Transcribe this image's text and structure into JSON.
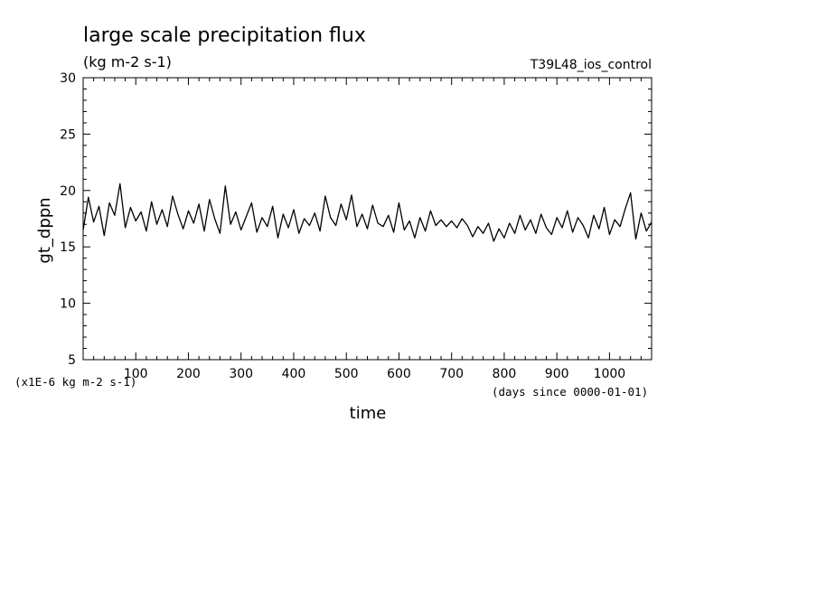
{
  "chart_data": {
    "type": "line",
    "title": "large scale precipitation flux",
    "subtitle": "(kg m-2 s-1)",
    "run_label": "T39L48_ios_control",
    "xlabel": "time",
    "x_units": "(days since 0000-01-01)",
    "ylabel": "gt_dppn",
    "y_scale_note": "(x1E-6 kg m-2 s-1)",
    "xlim": [
      0,
      1080
    ],
    "ylim": [
      5,
      30
    ],
    "x_ticks": [
      100,
      200,
      300,
      400,
      500,
      600,
      700,
      800,
      900,
      1000
    ],
    "y_ticks": [
      5,
      10,
      15,
      20,
      25,
      30
    ],
    "grid": false,
    "series": [
      {
        "x": [
          0,
          10,
          20,
          30,
          40,
          50,
          60,
          70,
          80,
          90,
          100,
          110,
          120,
          130,
          140,
          150,
          160,
          170,
          180,
          190,
          200,
          210,
          220,
          230,
          240,
          250,
          260,
          270,
          280,
          290,
          300,
          310,
          320,
          330,
          340,
          350,
          360,
          370,
          380,
          390,
          400,
          410,
          420,
          430,
          440,
          450,
          460,
          470,
          480,
          490,
          500,
          510,
          520,
          530,
          540,
          550,
          560,
          570,
          580,
          590,
          600,
          610,
          620,
          630,
          640,
          650,
          660,
          670,
          680,
          690,
          700,
          710,
          720,
          730,
          740,
          750,
          760,
          770,
          780,
          790,
          800,
          810,
          820,
          830,
          840,
          850,
          860,
          870,
          880,
          890,
          900,
          910,
          920,
          930,
          940,
          950,
          960,
          970,
          980,
          990,
          1000,
          1010,
          1020,
          1030,
          1040,
          1050,
          1060,
          1070,
          1080
        ],
        "values": [
          16.5,
          19.4,
          17.2,
          18.6,
          16.0,
          18.9,
          17.8,
          20.6,
          16.7,
          18.5,
          17.3,
          18.1,
          16.4,
          19.0,
          17.0,
          18.3,
          16.8,
          19.5,
          17.9,
          16.6,
          18.2,
          17.1,
          18.8,
          16.4,
          19.2,
          17.5,
          16.2,
          20.4,
          17.0,
          18.1,
          16.5,
          17.7,
          18.9,
          16.3,
          17.6,
          16.8,
          18.6,
          15.8,
          17.9,
          16.7,
          18.3,
          16.2,
          17.5,
          16.9,
          18.0,
          16.4,
          19.5,
          17.6,
          16.9,
          18.8,
          17.4,
          19.6,
          16.8,
          17.9,
          16.6,
          18.7,
          17.1,
          16.8,
          17.8,
          16.3,
          18.9,
          16.5,
          17.3,
          15.8,
          17.6,
          16.4,
          18.2,
          16.9,
          17.4,
          16.8,
          17.3,
          16.7,
          17.5,
          16.9,
          15.9,
          16.8,
          16.2,
          17.1,
          15.5,
          16.6,
          15.8,
          17.1,
          16.2,
          17.8,
          16.5,
          17.4,
          16.2,
          17.9,
          16.7,
          16.1,
          17.6,
          16.7,
          18.2,
          16.3,
          17.6,
          16.9,
          15.8,
          17.8,
          16.6,
          18.5,
          16.1,
          17.4,
          16.8,
          18.4,
          19.8,
          15.7,
          18.0,
          16.4,
          17.2
        ]
      }
    ]
  }
}
